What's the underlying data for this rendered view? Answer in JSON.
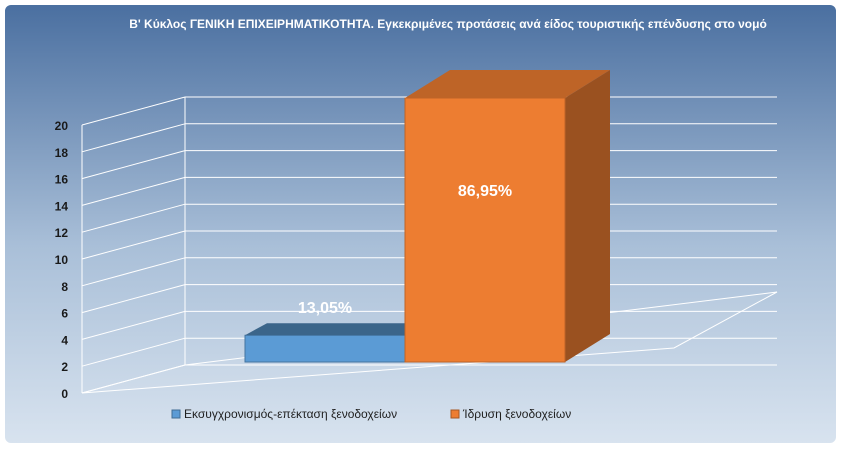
{
  "chart_data": {
    "type": "bar",
    "title": "Β' Κύκλος ΓΕΝΙΚΗ ΕΠΙΧΕΙΡΗΜΑΤΙΚΟΤΗΤΑ. Εγκεκριμένες προτάσεις ανά είδος τουριστικής επένδυσης στο νομό",
    "categories": [
      "Εκσυγχρονισμός-επέκταση ξενοδοχείων",
      "Ίδρυση ξενοδοχείων"
    ],
    "values": [
      2,
      20
    ],
    "data_labels": [
      "13,05%",
      "86,95%"
    ],
    "colors": [
      "#5b9bd5",
      "#ed7d31"
    ],
    "ylim": [
      0,
      20
    ],
    "y_ticks": [
      "0",
      "2",
      "4",
      "6",
      "8",
      "10",
      "12",
      "14",
      "16",
      "18",
      "20"
    ],
    "grid": true,
    "legend_position": "bottom",
    "style": "3d",
    "background": [
      "#4a6fa0",
      "#a9bfd8",
      "#d8e3ef"
    ]
  }
}
